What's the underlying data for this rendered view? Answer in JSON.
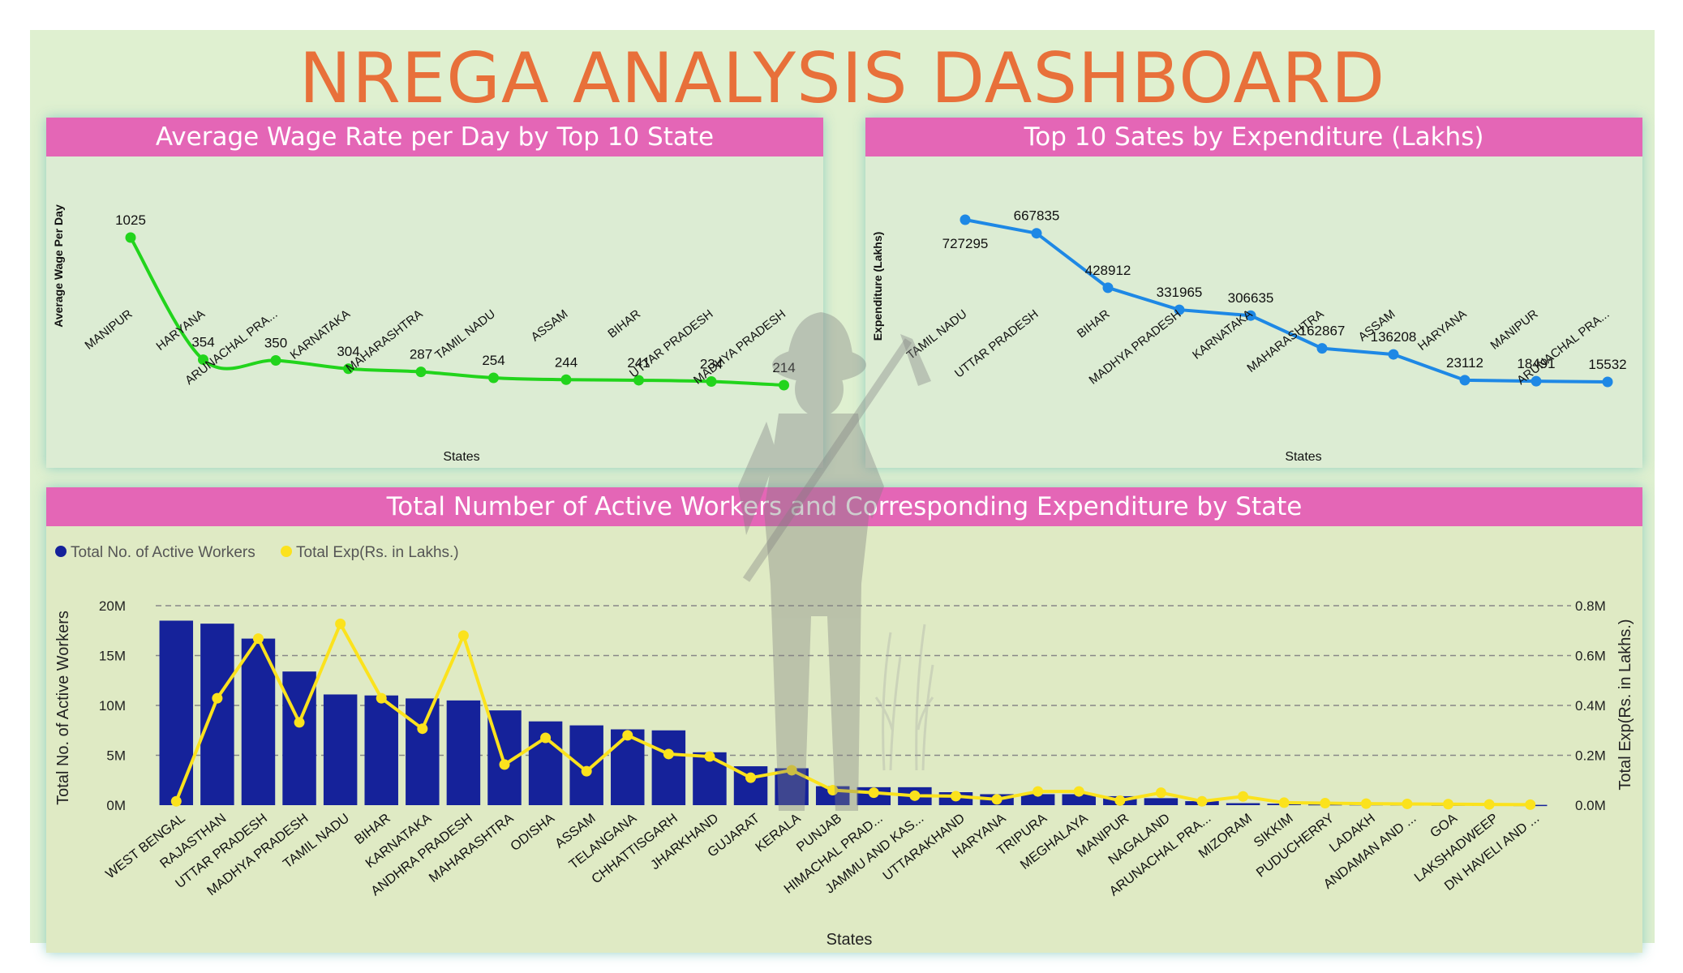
{
  "dashboard": {
    "title": "NREGA ANALYSIS DASHBOARD"
  },
  "colors": {
    "title": "#e8703a",
    "header_bg": "#e466b6",
    "panel_bg": "#dcecd3",
    "wage_line": "#22d41c",
    "exp_line": "#1e88e5",
    "workers_bar": "#15229a",
    "exp_combo_line": "#fbe21d"
  },
  "chart_data": [
    {
      "type": "line",
      "title": "Average Wage Rate per Day by Top 10 State",
      "xlabel": "States",
      "ylabel": "Average Wage Per Day",
      "categories": [
        "MANIPUR",
        "HARYANA",
        "ARUNACHAL PRA...",
        "KARNATAKA",
        "MAHARASHTRA",
        "TAMIL NADU",
        "ASSAM",
        "BIHAR",
        "UTTAR PRADESH",
        "MADHYA PRADESH"
      ],
      "values": [
        1025,
        354,
        350,
        304,
        287,
        254,
        244,
        241,
        234,
        214
      ],
      "data_labels": [
        "1025",
        "354",
        "350",
        "304",
        "287",
        "254",
        "244",
        "241",
        "234",
        "214"
      ],
      "smooth": true,
      "grid": false
    },
    {
      "type": "line",
      "title": "Top 10 Sates by Expenditure (Lakhs)",
      "xlabel": "States",
      "ylabel": "Expenditure (Lakhs)",
      "categories": [
        "TAMIL NADU",
        "UTTAR PRADESH",
        "BIHAR",
        "MADHYA PRADESH",
        "KARNATAKA",
        "MAHARASHTRA",
        "ASSAM",
        "HARYANA",
        "MANIPUR",
        "ARUNACHAL PRA..."
      ],
      "values": [
        727295,
        667835,
        428912,
        331965,
        306635,
        162867,
        136208,
        23112,
        18491,
        15532
      ],
      "data_labels": [
        "727295",
        "667835",
        "428912",
        "331965",
        "306635",
        "162867",
        "136208",
        "23112",
        "18491",
        "15532"
      ],
      "grid": false
    },
    {
      "type": "bar",
      "title": "Total Number of Active Workers and Corresponding Expenditure by State",
      "xlabel": "States",
      "ylabel": "Total No. of Active Workers",
      "y2label": "Total Exp(Rs. in Lakhs.)",
      "ylim": [
        0,
        20000000
      ],
      "y2lim": [
        0,
        800000
      ],
      "yticks": [
        "0M",
        "5M",
        "10M",
        "15M",
        "20M"
      ],
      "y2ticks": [
        "0.0M",
        "0.2M",
        "0.4M",
        "0.6M",
        "0.8M"
      ],
      "legend_position": "top-left",
      "grid": true,
      "categories": [
        "WEST BENGAL",
        "RAJASTHAN",
        "UTTAR PRADESH",
        "MADHYA PRADESH",
        "TAMIL NADU",
        "BIHAR",
        "KARNATAKA",
        "ANDHRA PRADESH",
        "MAHARASHTRA",
        "ODISHA",
        "ASSAM",
        "TELANGANA",
        "CHHATTISGARH",
        "JHARKHAND",
        "GUJARAT",
        "KERALA",
        "PUNJAB",
        "HIMACHAL PRAD...",
        "JAMMU AND KAS...",
        "UTTARAKHAND",
        "HARYANA",
        "TRIPURA",
        "MEGHALAYA",
        "MANIPUR",
        "NAGALAND",
        "ARUNACHAL PRA...",
        "MIZORAM",
        "SIKKIM",
        "PUDUCHERRY",
        "LADAKH",
        "ANDAMAN AND ...",
        "GOA",
        "LAKSHADWEEP",
        "DN HAVELI AND ..."
      ],
      "series": [
        {
          "name": "Total No. of Active Workers",
          "kind": "bar",
          "axis": "left",
          "values": [
            18500000,
            18200000,
            16700000,
            13400000,
            11100000,
            11000000,
            10700000,
            10500000,
            9500000,
            8400000,
            8000000,
            7600000,
            7500000,
            5300000,
            3900000,
            3700000,
            1900000,
            1800000,
            1800000,
            1300000,
            1100000,
            1100000,
            1100000,
            900000,
            700000,
            400000,
            200000,
            150000,
            100000,
            100000,
            80000,
            60000,
            40000,
            30000
          ]
        },
        {
          "name": "Total Exp(Rs. in Lakhs.)",
          "kind": "line",
          "axis": "right",
          "values": [
            15532,
            428912,
            667835,
            331965,
            727295,
            428912,
            306635,
            680000,
            162867,
            270000,
            136208,
            280000,
            205000,
            195000,
            110000,
            140000,
            60000,
            50000,
            38000,
            36000,
            23112,
            55000,
            55000,
            18491,
            50000,
            15532,
            35000,
            10000,
            8000,
            6000,
            5000,
            4000,
            3000,
            2000
          ]
        }
      ]
    }
  ]
}
